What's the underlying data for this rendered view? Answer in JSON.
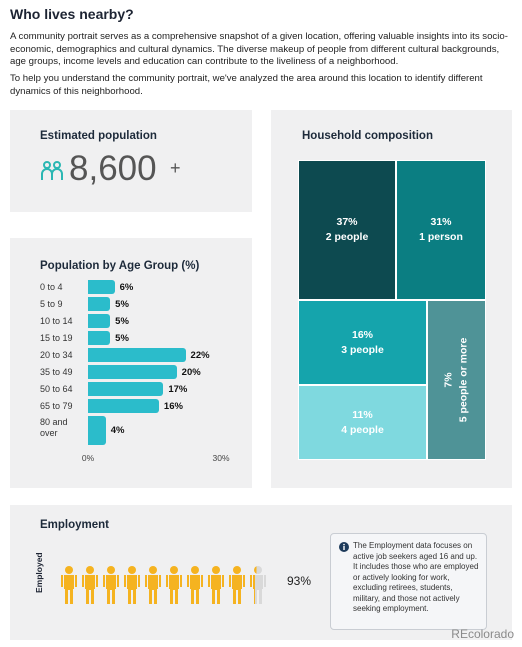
{
  "title": "Who lives nearby?",
  "intro": [
    "A community portrait serves as a comprehensive snapshot of a given location, offering valuable insights into its socio-economic, demographics and cultural dynamics. The diverse makeup of people from different cultural backgrounds, age groups, income levels and education can contribute to the liveliness of a neighborhood.",
    "To help you understand the community portrait, we've analyzed the area around this location to identify different dynamics of this neighborhood."
  ],
  "population": {
    "title": "Estimated population",
    "value": "8,600",
    "suffix": "+"
  },
  "chart_data": [
    {
      "type": "bar",
      "orientation": "horizontal",
      "title": "Population by Age Group (%)",
      "categories": [
        "0 to 4",
        "5 to 9",
        "10 to 14",
        "15 to 19",
        "20 to 34",
        "35 to 49",
        "50 to 64",
        "65 to 79",
        "80 and over"
      ],
      "values": [
        6,
        5,
        5,
        5,
        22,
        20,
        17,
        16,
        4
      ],
      "value_labels": [
        "6%",
        "5%",
        "5%",
        "5%",
        "22%",
        "20%",
        "17%",
        "16%",
        "4%"
      ],
      "color": "#2bbccb",
      "xlim": [
        0,
        30
      ],
      "xticks": [
        {
          "value": 0,
          "label": "0%"
        },
        {
          "value": 30,
          "label": "30%"
        }
      ]
    },
    {
      "type": "treemap",
      "title": "Household composition",
      "categories": [
        "2 people",
        "1 person",
        "3 people",
        "4 people",
        "5 people or more"
      ],
      "values": [
        37,
        31,
        16,
        11,
        7
      ],
      "value_labels": [
        "37%",
        "31%",
        "16%",
        "11%",
        "7%"
      ],
      "colors": [
        "#0d4a50",
        "#0b7e82",
        "#15a4ac",
        "#7fd9df",
        "#4f9397"
      ]
    },
    {
      "type": "pictogram",
      "title": "Employment",
      "categories": [
        "Employed"
      ],
      "values": [
        93
      ],
      "value_labels": [
        "93%"
      ],
      "color": "#f5b320",
      "xlim": [
        0,
        100
      ],
      "note": "The Employment data focuses on active job seekers aged 16 and up. It includes those who are employed or actively looking for work, excluding retirees, students, military, and those not actively seeking employment."
    }
  ],
  "watermark": "REcolorado"
}
